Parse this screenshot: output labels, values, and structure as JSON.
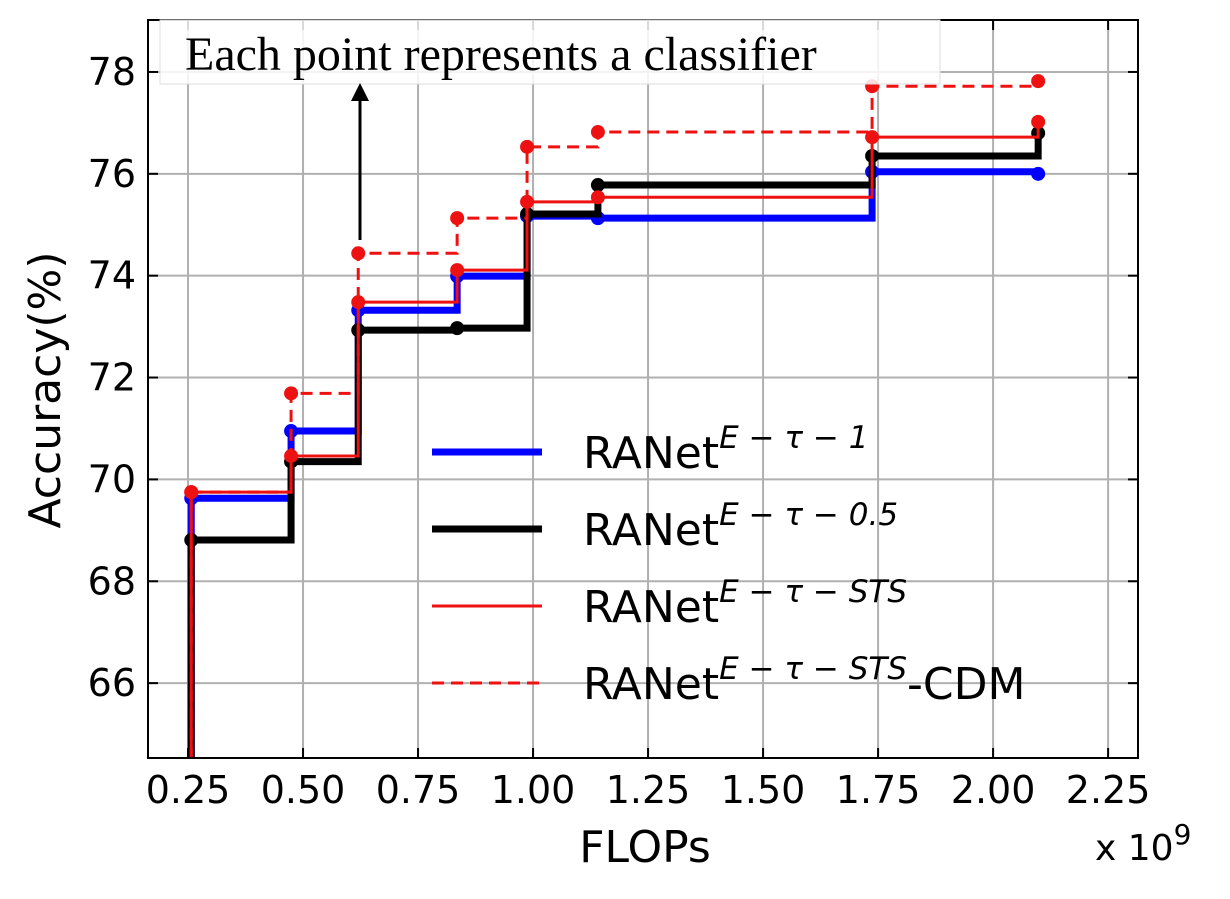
{
  "chart_data": {
    "type": "step",
    "annotation": "Each point represents a classifier",
    "x_label": "FLOPs",
    "y_label": "Accuracy(%)",
    "x_multiplier": {
      "base": "x 10",
      "exp": "9"
    },
    "x": [
      0.257,
      0.474,
      0.62,
      0.835,
      0.987,
      1.141,
      1.737,
      2.098
    ],
    "series": [
      {
        "name": {
          "base": "RANet",
          "sup": "E − τ − 1"
        },
        "color": "#0000ff",
        "linestyle": "thick",
        "values": [
          69.63,
          70.95,
          73.32,
          73.99,
          75.17,
          75.13,
          76.04,
          76.0
        ]
      },
      {
        "name": {
          "base": "RANet",
          "sup": "E − τ − 0.5"
        },
        "color": "#000000",
        "linestyle": "thick",
        "values": [
          68.81,
          70.35,
          72.93,
          72.97,
          75.21,
          75.78,
          76.35,
          76.8
        ]
      },
      {
        "name": {
          "base": "RANet",
          "sup": "E − τ − STS"
        },
        "color": "#ee1111",
        "linestyle": "solid",
        "values": [
          69.75,
          70.46,
          73.48,
          74.11,
          75.45,
          75.54,
          76.72,
          77.02
        ]
      },
      {
        "name": {
          "base": "RANet",
          "sup": "E − τ − STS",
          "suffix": "-CDM"
        },
        "color": "#ee1111",
        "linestyle": "dashed",
        "values": [
          69.75,
          71.69,
          74.44,
          75.13,
          76.53,
          76.82,
          77.72,
          77.82
        ]
      }
    ],
    "xlim": [
      0.163,
      2.315
    ],
    "ylim": [
      64.53,
      79.02
    ],
    "xticks": [
      0.25,
      {
        "value": 0.5,
        "label": "0.50"
      },
      0.75,
      {
        "value": 1,
        "label": "1.00"
      },
      1.25,
      {
        "value": 1.5,
        "label": "1.50"
      },
      1.75,
      {
        "value": 2,
        "label": "2.00"
      },
      2.25
    ],
    "yticks": [
      66,
      68,
      70,
      72,
      74,
      76,
      78
    ],
    "grid": true,
    "legend": "lower-right"
  }
}
